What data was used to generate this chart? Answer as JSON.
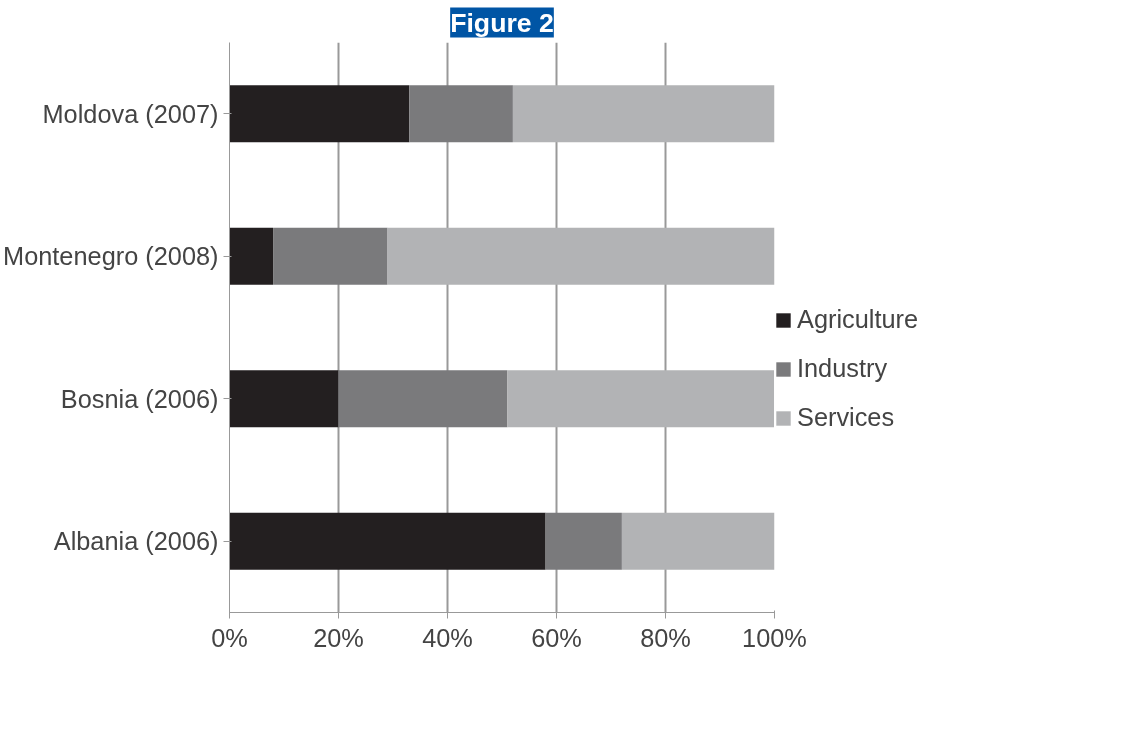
{
  "chart_data": {
    "type": "bar",
    "title": "Figure 2",
    "orientation": "horizontal",
    "stacked": true,
    "categories": [
      "Moldova (2007)",
      "Montenegro (2008)",
      "Bosnia (2006)",
      "Albania (2006)"
    ],
    "series": [
      {
        "name": "Agriculture",
        "color": "#231f20",
        "values": [
          33,
          8,
          20,
          58
        ]
      },
      {
        "name": "Industry",
        "color": "#7a7a7c",
        "values": [
          19,
          21,
          31,
          14
        ]
      },
      {
        "name": "Services",
        "color": "#b2b3b5",
        "values": [
          48,
          71,
          49,
          28
        ]
      }
    ],
    "xlim": [
      0,
      100
    ],
    "xticks": [
      {
        "value": 0,
        "label": "0%"
      },
      {
        "value": 20,
        "label": "20%"
      },
      {
        "value": 40,
        "label": "40%"
      },
      {
        "value": 60,
        "label": "60%"
      },
      {
        "value": 80,
        "label": "80%"
      },
      {
        "value": 100,
        "label": "100%"
      }
    ],
    "grid": "x",
    "legend": "right"
  }
}
